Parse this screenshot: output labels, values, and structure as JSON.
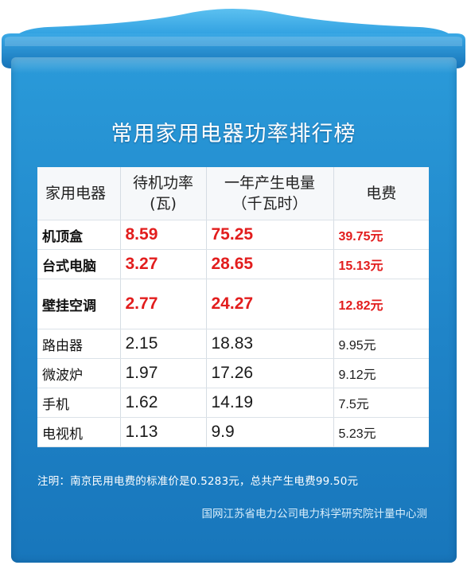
{
  "title": "常用家用电器功率排行榜",
  "table": {
    "headers": [
      {
        "line1": "家用电器",
        "line2": ""
      },
      {
        "line1": "待机功率",
        "line2": "(瓦)"
      },
      {
        "line1": "一年产生电量",
        "line2": "（千瓦时）"
      },
      {
        "line1": "电费",
        "line2": ""
      }
    ],
    "rows": [
      {
        "name": "机顶盒",
        "power": "8.59",
        "energy": "75.25",
        "fee": "39.75元",
        "highlight": true
      },
      {
        "name": "台式电脑",
        "power": "3.27",
        "energy": "28.65",
        "fee": "15.13元",
        "highlight": true
      },
      {
        "name": "壁挂空调",
        "power": "2.77",
        "energy": "24.27",
        "fee": "12.82元",
        "highlight": true
      },
      {
        "name": "路由器",
        "power": "2.15",
        "energy": "18.83",
        "fee": "9.95元",
        "highlight": false
      },
      {
        "name": "微波炉",
        "power": "1.97",
        "energy": "17.26",
        "fee": "9.12元",
        "highlight": false
      },
      {
        "name": "手机",
        "power": "1.62",
        "energy": "14.19",
        "fee": "7.5元",
        "highlight": false
      },
      {
        "name": "电视机",
        "power": "1.13",
        "energy": "9.9",
        "fee": "5.23元",
        "highlight": false
      }
    ]
  },
  "note": "注明：南京民用电费的标准价是0.5283元，总共产生电费99.50元",
  "source": "国网江苏省电力公司电力科学研究院计量中心测",
  "colors": {
    "background_blue": "#1f84c8",
    "highlight_red": "#e21d1d",
    "table_bg": "#ffffff"
  }
}
